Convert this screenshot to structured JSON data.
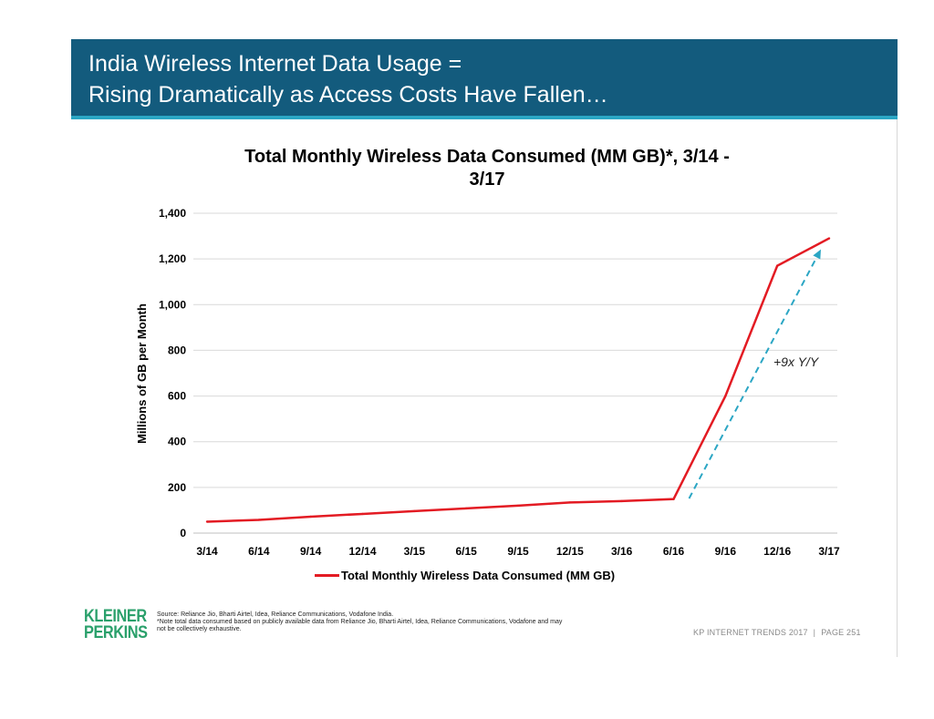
{
  "header": {
    "title_line1": "India Wireless Internet Data Usage =",
    "title_line2": "Rising Dramatically as Access Costs Have Fallen…"
  },
  "colors": {
    "header_bg": "#135b7d",
    "header_accent": "#2ba6c4",
    "series_line": "#e31b23",
    "annotation_arrow": "#2ba6c4",
    "logo": "#2aa06b"
  },
  "chart_data": {
    "type": "line",
    "title_line1": "Total Monthly Wireless Data Consumed (MM GB)*, 3/14 -",
    "title_line2": "3/17",
    "ylabel": "Millions of GB per Month",
    "xlabel": "",
    "ylim": [
      0,
      1400
    ],
    "yticks": [
      0,
      200,
      400,
      600,
      800,
      1000,
      1200,
      1400
    ],
    "ytick_labels": [
      "0",
      "200",
      "400",
      "600",
      "800",
      "1,000",
      "1,200",
      "1,400"
    ],
    "grid": true,
    "categories": [
      "3/14",
      "6/14",
      "9/14",
      "12/14",
      "3/15",
      "6/15",
      "9/15",
      "12/15",
      "3/16",
      "6/16",
      "9/16",
      "12/16",
      "3/17"
    ],
    "series": [
      {
        "name": "Total Monthly Wireless Data Consumed (MM GB)",
        "values": [
          50,
          58,
          72,
          84,
          96,
          108,
          120,
          134,
          140,
          149,
          600,
          1170,
          1290
        ]
      }
    ],
    "annotation": {
      "text": "+9x Y/Y",
      "from_category": "6/16",
      "to_category": "3/17",
      "from_value": 149,
      "to_value": 1290
    },
    "legend": {
      "label": "Total Monthly Wireless Data Consumed (MM GB)",
      "position": "bottom-center"
    }
  },
  "footer": {
    "logo_line1": "KLEINER",
    "logo_line2": "PERKINS",
    "source_line1": "Source: Reliance Jio, Bharti Airtel, Idea, Reliance Communications, Vodafone India.",
    "source_line2": "*Note total data consumed based on publicly available data from Reliance Jio, Bharti Airtel, Idea, Reliance Communications, Vodafone and may",
    "source_line3": "not be collectively exhaustive.",
    "report_name": "KP INTERNET TRENDS 2017",
    "separator": "|",
    "page_label": "PAGE 251"
  }
}
